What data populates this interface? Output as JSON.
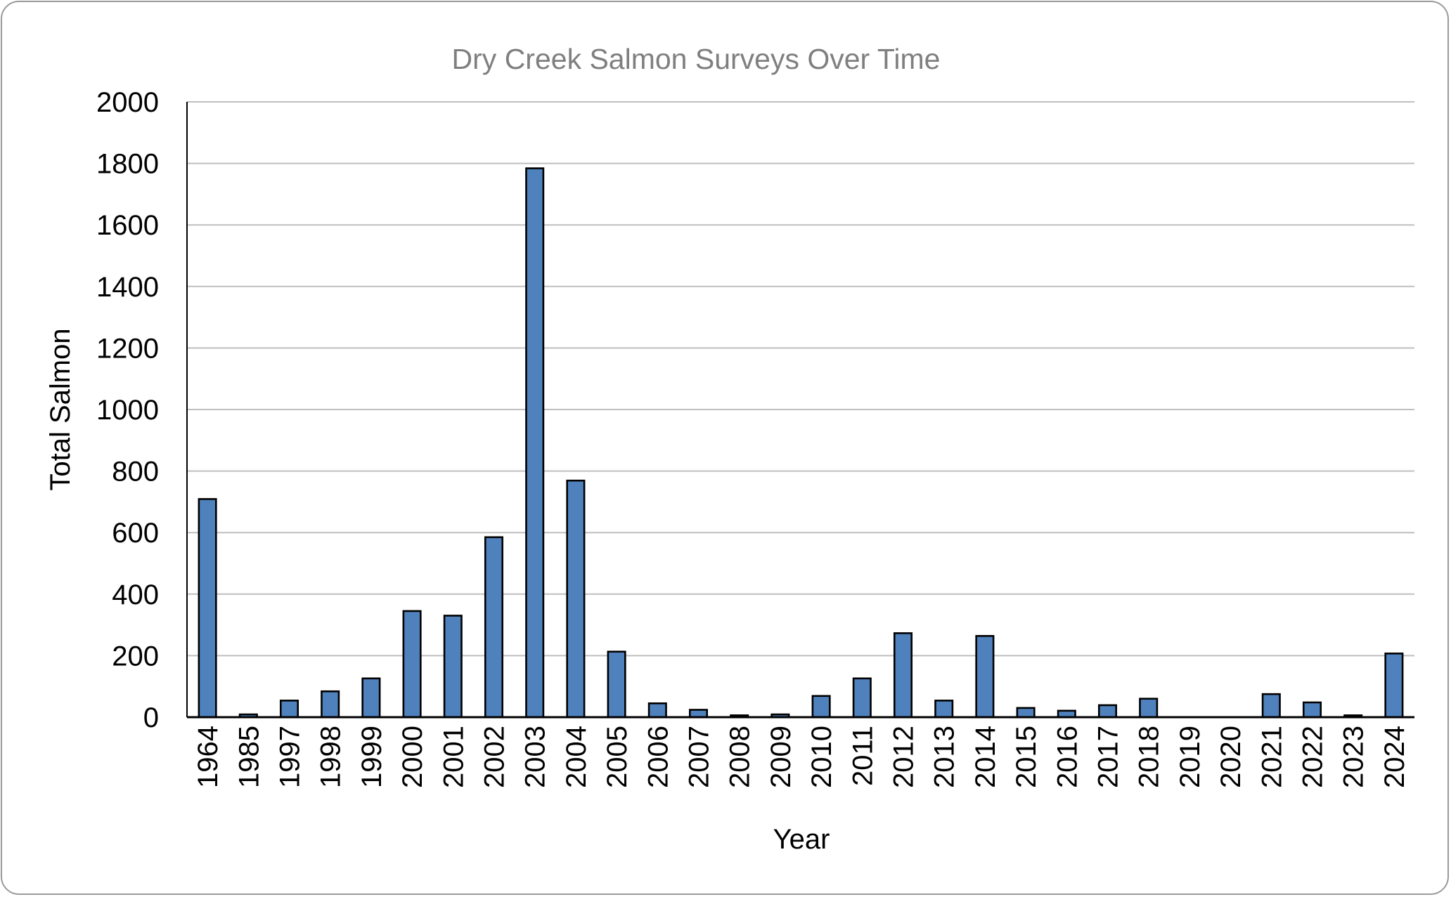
{
  "chart_data": {
    "type": "bar",
    "title": "Dry Creek Salmon Surveys Over Time",
    "xlabel": "Year",
    "ylabel": "Total Salmon",
    "ylim": [
      0,
      2000
    ],
    "yticks": [
      0,
      200,
      400,
      600,
      800,
      1000,
      1200,
      1400,
      1600,
      1800,
      2000
    ],
    "grid": true,
    "legend": "none",
    "bar_color": "#4f81bd",
    "categories": [
      "1964",
      "1985",
      "1997",
      "1998",
      "1999",
      "2000",
      "2001",
      "2002",
      "2003",
      "2004",
      "2005",
      "2006",
      "2007",
      "2008",
      "2009",
      "2010",
      "2011",
      "2012",
      "2013",
      "2014",
      "2015",
      "2016",
      "2017",
      "2018",
      "2019",
      "2020",
      "2021",
      "2022",
      "2023",
      "2024"
    ],
    "values": [
      709,
      9,
      54,
      84,
      126,
      345,
      330,
      585,
      1784,
      769,
      213,
      45,
      24,
      6,
      9,
      69,
      126,
      273,
      54,
      264,
      30,
      21,
      39,
      60,
      0,
      0,
      75,
      48,
      6,
      207
    ]
  }
}
